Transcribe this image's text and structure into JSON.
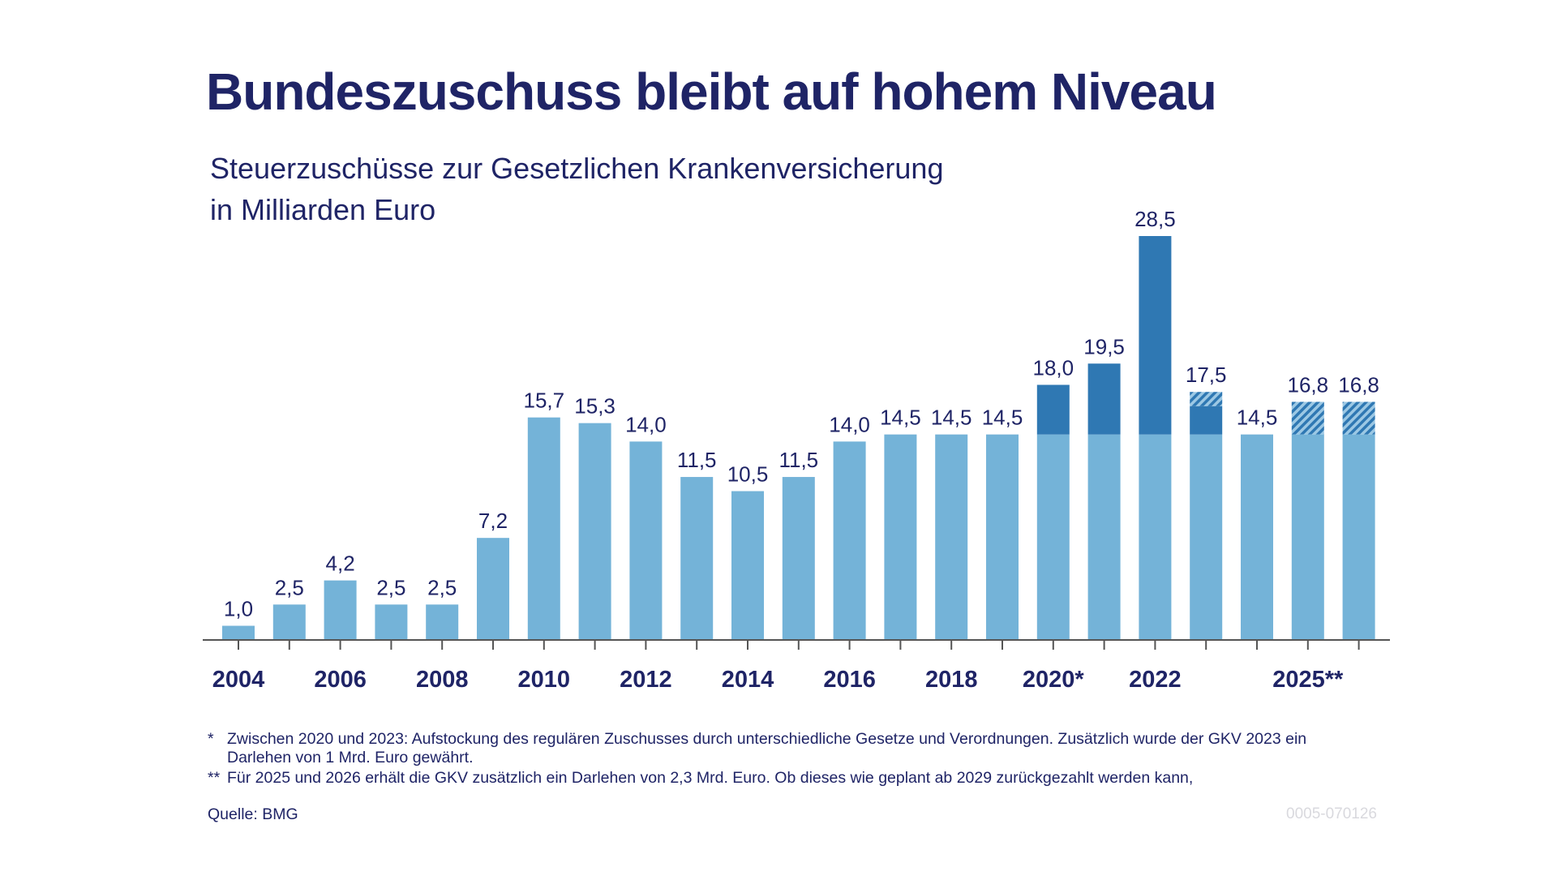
{
  "title": "Bundeszuschuss bleibt auf hohem Niveau",
  "subtitle_line1": "Steuerzuschüsse zur Gesetzlichen Krankenversicherung",
  "subtitle_line2": "in Milliarden Euro",
  "chart_data": {
    "type": "bar",
    "stacked": true,
    "categories": [
      "2004",
      "2005",
      "2006",
      "2007",
      "2008",
      "2009",
      "2010",
      "2011",
      "2012",
      "2013",
      "2014",
      "2015",
      "2016",
      "2017",
      "2018",
      "2019",
      "2020",
      "2021",
      "2022",
      "2023",
      "2024",
      "2025",
      "2026"
    ],
    "tick_labels": [
      "2004",
      "",
      "2006",
      "",
      "2008",
      "",
      "2010",
      "",
      "2012",
      "",
      "2014",
      "",
      "2016",
      "",
      "2018",
      "",
      "2020*",
      "",
      "2022",
      "",
      "",
      "2025**",
      ""
    ],
    "series": [
      {
        "values": [
          1.0,
          2.5,
          4.2,
          2.5,
          2.5,
          7.2,
          15.7,
          15.3,
          14.0,
          11.5,
          10.5,
          11.5,
          14.0,
          14.5,
          14.5,
          14.5,
          14.5,
          14.5,
          14.5,
          14.5,
          14.5,
          14.5,
          14.5
        ],
        "color": "#74b3d8"
      },
      {
        "values": [
          0,
          0,
          0,
          0,
          0,
          0,
          0,
          0,
          0,
          0,
          0,
          0,
          0,
          0,
          0,
          0,
          3.5,
          5.0,
          14.0,
          2.0,
          0,
          0,
          0
        ],
        "color": "#2f78b3"
      },
      {
        "values": [
          0,
          0,
          0,
          0,
          0,
          0,
          0,
          0,
          0,
          0,
          0,
          0,
          0,
          0,
          0,
          0,
          0,
          0,
          0,
          1.0,
          0,
          2.3,
          2.3
        ],
        "color": "#2f78b3",
        "pattern": "hatched"
      }
    ],
    "data_labels": [
      "1,0",
      "2,5",
      "4,2",
      "2,5",
      "2,5",
      "7,2",
      "15,7",
      "15,3",
      "14,0",
      "11,5",
      "10,5",
      "11,5",
      "14,0",
      "14,5",
      "14,5",
      "14,5",
      "18,0",
      "19,5",
      "28,5",
      "17,5",
      "14,5",
      "16,8",
      "16,8"
    ],
    "ylim": [
      0,
      28.5
    ],
    "grid": false,
    "legend": "none"
  },
  "footnotes": [
    {
      "mark": "*",
      "text": "Zwischen 2020 und 2023: Aufstockung des regulären Zuschusses durch unterschiedliche Gesetze und Verordnungen. Zusätzlich wurde der GKV 2023 ein",
      "text2": "Darlehen von 1 Mrd. Euro gewährt."
    },
    {
      "mark": "**",
      "text": "Für 2025 und 2026 erhält die GKV zusätzlich ein Darlehen von 2,3 Mrd. Euro. Ob dieses wie geplant ab 2029 zurückgezahlt werden kann,"
    }
  ],
  "source": "Quelle: BMG",
  "code": "0005-070126"
}
